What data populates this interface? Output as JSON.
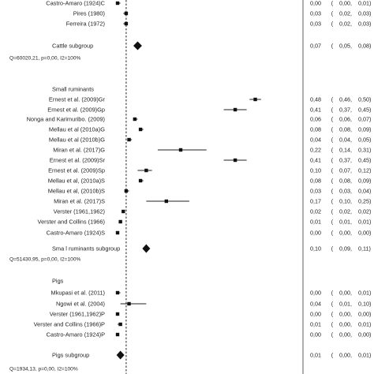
{
  "chart_data": {
    "type": "forest",
    "title": "",
    "xlabel": "",
    "ylabel": "",
    "xlim": [
      0.0,
      0.55
    ],
    "reference_line": 0.03,
    "groups": [
      {
        "name": "Cattle",
        "studies": [
          {
            "label": "Castro-Amaro (1924)C",
            "est": 0.0,
            "lo": 0.0,
            "hi": 0.01,
            "ci_text": [
              "0,00",
              "(",
              "0,00,",
              "0,01)"
            ]
          },
          {
            "label": "Pires (1980)",
            "est": 0.03,
            "lo": 0.02,
            "hi": 0.03,
            "ci_text": [
              "0,03",
              "(",
              "0,02,",
              "0,03)"
            ]
          },
          {
            "label": "Ferreira (1972)",
            "est": 0.03,
            "lo": 0.02,
            "hi": 0.03,
            "ci_text": [
              "0,03",
              "(",
              "0,02,",
              "0,03)"
            ]
          }
        ],
        "subgroup": {
          "label": "Cattle subgroup",
          "est": 0.07,
          "lo": 0.05,
          "hi": 0.08,
          "ci_text": [
            "0,07",
            "(",
            "0,05,",
            "0,08)"
          ],
          "heterogeneity": "Q=60020,21, p=0,00, I2=100%"
        }
      },
      {
        "name": "Small ruminants",
        "studies": [
          {
            "label": "Ernest et al. (2009)Gr",
            "est": 0.48,
            "lo": 0.46,
            "hi": 0.5,
            "ci_text": [
              "0,48",
              "(",
              "0,46,",
              "0,50)"
            ]
          },
          {
            "label": "Ernest et al. (2009)Gp",
            "est": 0.41,
            "lo": 0.37,
            "hi": 0.45,
            "ci_text": [
              "0,41",
              "(",
              "0,37,",
              "0,45)"
            ]
          },
          {
            "label": "Nonga and Karimuribo. (2009)",
            "est": 0.06,
            "lo": 0.06,
            "hi": 0.07,
            "ci_text": [
              "0,06",
              "(",
              "0,06,",
              "0,07)"
            ]
          },
          {
            "label": "Mellau et al (2010a)G",
            "est": 0.08,
            "lo": 0.08,
            "hi": 0.09,
            "ci_text": [
              "0,08",
              "(",
              "0,08,",
              "0,09)"
            ]
          },
          {
            "label": "Mellau et al (2010b)G",
            "est": 0.04,
            "lo": 0.04,
            "hi": 0.05,
            "ci_text": [
              "0,04",
              "(",
              "0,04,",
              "0,05)"
            ]
          },
          {
            "label": "Miran et al. (2017)G",
            "est": 0.22,
            "lo": 0.14,
            "hi": 0.31,
            "ci_text": [
              "0,22",
              "(",
              "0,14,",
              "0,31)"
            ]
          },
          {
            "label": "Ernest et al. (2009)Sr",
            "est": 0.41,
            "lo": 0.37,
            "hi": 0.45,
            "ci_text": [
              "0,41",
              "(",
              "0,37,",
              "0,45)"
            ]
          },
          {
            "label": "Ernest et al. (2009)Sp",
            "est": 0.1,
            "lo": 0.07,
            "hi": 0.12,
            "ci_text": [
              "0,10",
              "(",
              "0,07,",
              "0,12)"
            ]
          },
          {
            "label": "Mellau et al, (2010a)S",
            "est": 0.08,
            "lo": 0.08,
            "hi": 0.09,
            "ci_text": [
              "0,08",
              "(",
              "0,08,",
              "0,09)"
            ]
          },
          {
            "label": "Mellau et al, (2010b)S",
            "est": 0.03,
            "lo": 0.03,
            "hi": 0.04,
            "ci_text": [
              "0,03",
              "(",
              "0,03,",
              "0,04)"
            ]
          },
          {
            "label": "Miran et al. (2017)S",
            "est": 0.17,
            "lo": 0.1,
            "hi": 0.25,
            "ci_text": [
              "0,17",
              "(",
              "0,10,",
              "0,25)"
            ]
          },
          {
            "label": "Verster (1961,1962)",
            "est": 0.02,
            "lo": 0.02,
            "hi": 0.02,
            "ci_text": [
              "0,02",
              "(",
              "0,02,",
              "0,02)"
            ]
          },
          {
            "label": "Verster and Collins (1966)",
            "est": 0.01,
            "lo": 0.01,
            "hi": 0.01,
            "ci_text": [
              "0,01",
              "(",
              "0,01,",
              "0,01)"
            ]
          },
          {
            "label": "Castro-Amaro (1924)S",
            "est": 0.0,
            "lo": 0.0,
            "hi": 0.0,
            "ci_text": [
              "0,00",
              "(",
              "0,00,",
              "0,00)"
            ]
          }
        ],
        "subgroup": {
          "label": "Sma l ruminants subgroup",
          "est": 0.1,
          "lo": 0.09,
          "hi": 0.11,
          "ci_text": [
            "0,10",
            "(",
            "0,09,",
            "0,11)"
          ],
          "heterogeneity": "Q=51430,95, p=0,00, I2=100%"
        }
      },
      {
        "name": "Pigs",
        "studies": [
          {
            "label": "Mkupasi et al. (2011)",
            "est": 0.0,
            "lo": 0.0,
            "hi": 0.01,
            "ci_text": [
              "0,00",
              "(",
              "0,00,",
              "0,01)"
            ]
          },
          {
            "label": "Ngowi et al. (2004)",
            "est": 0.04,
            "lo": 0.01,
            "hi": 0.1,
            "ci_text": [
              "0,04",
              "(",
              "0,01,",
              "0,10)"
            ]
          },
          {
            "label": "Verster (1961,1962)P",
            "est": 0.0,
            "lo": 0.0,
            "hi": 0.0,
            "ci_text": [
              "0,00",
              "(",
              "0,00,",
              "0,00)"
            ]
          },
          {
            "label": "Verster and Collins (1966)P",
            "est": 0.01,
            "lo": 0.0,
            "hi": 0.01,
            "ci_text": [
              "0,01",
              "(",
              "0,00,",
              "0,01)"
            ]
          },
          {
            "label": "Castro-Amaro (1924)P",
            "est": 0.0,
            "lo": 0.0,
            "hi": 0.0,
            "ci_text": [
              "0,00",
              "(",
              "0,00,",
              "0,00)"
            ]
          }
        ],
        "subgroup": {
          "label": "Pigs subgroup",
          "est": 0.01,
          "lo": 0.0,
          "hi": 0.01,
          "ci_text": [
            "0,01",
            "(",
            "0,00,",
            "0,01)"
          ],
          "heterogeneity": "Q=1934,13, p=0,00, I2=100%"
        }
      }
    ]
  }
}
